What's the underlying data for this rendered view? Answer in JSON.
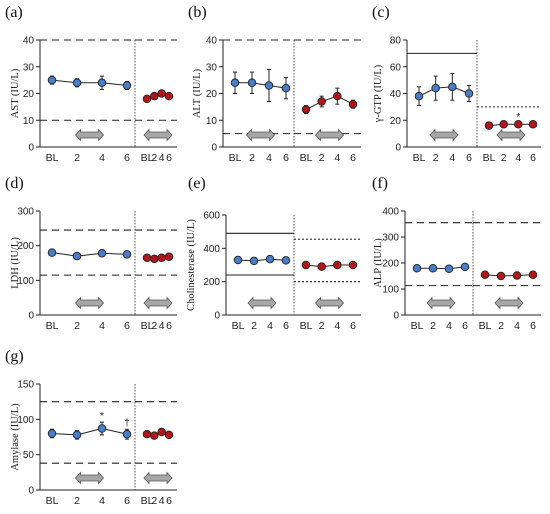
{
  "colors": {
    "group1": "#4a7dc9",
    "group2": "#b3151b",
    "arrow": "#a7a7a7",
    "line": "#222222"
  },
  "chart_data": [
    {
      "type": "line",
      "letter": "(a)",
      "ylabel": "AST (IU/L)",
      "yticks": [
        0,
        10,
        20,
        30,
        40
      ],
      "ylim": [
        0,
        40
      ],
      "xticks": [
        "BL",
        "2",
        "4",
        "6"
      ],
      "group1": {
        "values": [
          25,
          24,
          24,
          23
        ],
        "err": [
          1.5,
          1.5,
          2.5,
          1.5
        ],
        "refs": [
          {
            "y": 40,
            "style": "dash"
          },
          {
            "y": 10,
            "style": "dash"
          }
        ]
      },
      "group2": {
        "values": [
          18,
          19,
          20,
          19
        ],
        "err": [
          0.5,
          0.5,
          0.5,
          0.5
        ],
        "refs": [
          {
            "y": 40,
            "style": "dash"
          },
          {
            "y": 10,
            "style": "dash"
          }
        ]
      },
      "annotations": []
    },
    {
      "type": "line",
      "letter": "(b)",
      "ylabel": "ALT (IU/L)",
      "yticks": [
        0,
        10,
        20,
        30,
        40
      ],
      "ylim": [
        0,
        40
      ],
      "xticks": [
        "BL",
        "2",
        "4",
        "6"
      ],
      "group1": {
        "values": [
          24,
          24,
          23,
          22
        ],
        "err": [
          4,
          4,
          6,
          4
        ],
        "refs": [
          {
            "y": 40,
            "style": "dash"
          },
          {
            "y": 5,
            "style": "dash"
          }
        ]
      },
      "group2": {
        "values": [
          14,
          17,
          19,
          16
        ],
        "err": [
          1.5,
          2,
          3,
          1.5
        ],
        "refs": [
          {
            "y": 40,
            "style": "dash"
          },
          {
            "y": 5,
            "style": "dash"
          }
        ]
      },
      "annotations": []
    },
    {
      "type": "line",
      "letter": "(c)",
      "ylabel": "γ-GTP (IU/L)",
      "yticks": [
        0,
        20,
        40,
        60,
        80
      ],
      "ylim": [
        0,
        80
      ],
      "xticks": [
        "BL",
        "2",
        "4",
        "6"
      ],
      "group1": {
        "values": [
          38,
          44,
          45,
          40
        ],
        "err": [
          7,
          9,
          10,
          6
        ],
        "refs": [
          {
            "y": 70,
            "style": "solid"
          }
        ]
      },
      "group2": {
        "values": [
          16,
          17,
          17,
          17
        ],
        "err": [
          1,
          1,
          1,
          1
        ],
        "refs": [
          {
            "y": 30,
            "style": "dot"
          }
        ]
      },
      "annotations": [
        {
          "group": 2,
          "index": 2,
          "text": "*"
        }
      ]
    },
    {
      "type": "line",
      "letter": "(d)",
      "ylabel": "LDH (IU/L)",
      "yticks": [
        0,
        100,
        200,
        300
      ],
      "ylim": [
        0,
        300
      ],
      "xticks": [
        "BL",
        "2",
        "4",
        "6"
      ],
      "group1": {
        "values": [
          180,
          170,
          178,
          175
        ],
        "err": [
          8,
          6,
          8,
          8
        ],
        "refs": [
          {
            "y": 245,
            "style": "dash"
          },
          {
            "y": 115,
            "style": "dash"
          }
        ]
      },
      "group2": {
        "values": [
          165,
          162,
          165,
          168
        ],
        "err": [
          5,
          5,
          5,
          5
        ],
        "refs": [
          {
            "y": 245,
            "style": "dash"
          },
          {
            "y": 115,
            "style": "dash"
          }
        ]
      },
      "annotations": []
    },
    {
      "type": "line",
      "letter": "(e)",
      "ylabel": "Cholinesterase (IU/L)",
      "yticks": [
        0,
        200,
        400,
        600
      ],
      "ylim": [
        0,
        600
      ],
      "xticks": [
        "BL",
        "2",
        "4",
        "6"
      ],
      "group1": {
        "values": [
          330,
          325,
          335,
          328
        ],
        "err": [
          15,
          15,
          15,
          15
        ],
        "refs": [
          {
            "y": 490,
            "style": "solid"
          },
          {
            "y": 240,
            "style": "solid"
          }
        ]
      },
      "group2": {
        "values": [
          300,
          290,
          300,
          300
        ],
        "err": [
          10,
          10,
          10,
          10
        ],
        "refs": [
          {
            "y": 455,
            "style": "dot"
          },
          {
            "y": 200,
            "style": "dot"
          }
        ]
      },
      "annotations": []
    },
    {
      "type": "line",
      "letter": "(f)",
      "ylabel": "ALP (IU/L)",
      "yticks": [
        0,
        100,
        200,
        300,
        400
      ],
      "ylim": [
        0,
        400
      ],
      "xticks": [
        "BL",
        "2",
        "4",
        "6"
      ],
      "group1": {
        "values": [
          180,
          180,
          178,
          185
        ],
        "err": [
          8,
          6,
          6,
          10
        ],
        "refs": [
          {
            "y": 355,
            "style": "dash"
          },
          {
            "y": 113,
            "style": "dash"
          }
        ]
      },
      "group2": {
        "values": [
          155,
          150,
          152,
          155
        ],
        "err": [
          5,
          5,
          5,
          5
        ],
        "refs": [
          {
            "y": 355,
            "style": "dash"
          },
          {
            "y": 113,
            "style": "dash"
          }
        ]
      },
      "annotations": []
    },
    {
      "type": "line",
      "letter": "(g)",
      "ylabel": "Amylase (IU/L)",
      "yticks": [
        0,
        50,
        100,
        150
      ],
      "ylim": [
        0,
        150
      ],
      "xticks": [
        "BL",
        "2",
        "4",
        "6"
      ],
      "group1": {
        "values": [
          80,
          78,
          87,
          79
        ],
        "err": [
          6,
          6,
          9,
          7
        ],
        "refs": [
          {
            "y": 125,
            "style": "dash"
          },
          {
            "y": 38,
            "style": "dash"
          }
        ]
      },
      "group2": {
        "values": [
          79,
          77,
          82,
          78
        ],
        "err": [
          2,
          2,
          2,
          2
        ],
        "refs": [
          {
            "y": 125,
            "style": "dash"
          },
          {
            "y": 38,
            "style": "dash"
          }
        ]
      },
      "annotations": [
        {
          "group": 1,
          "index": 2,
          "text": "*"
        },
        {
          "group": 1,
          "index": 3,
          "text": "†"
        }
      ]
    }
  ]
}
